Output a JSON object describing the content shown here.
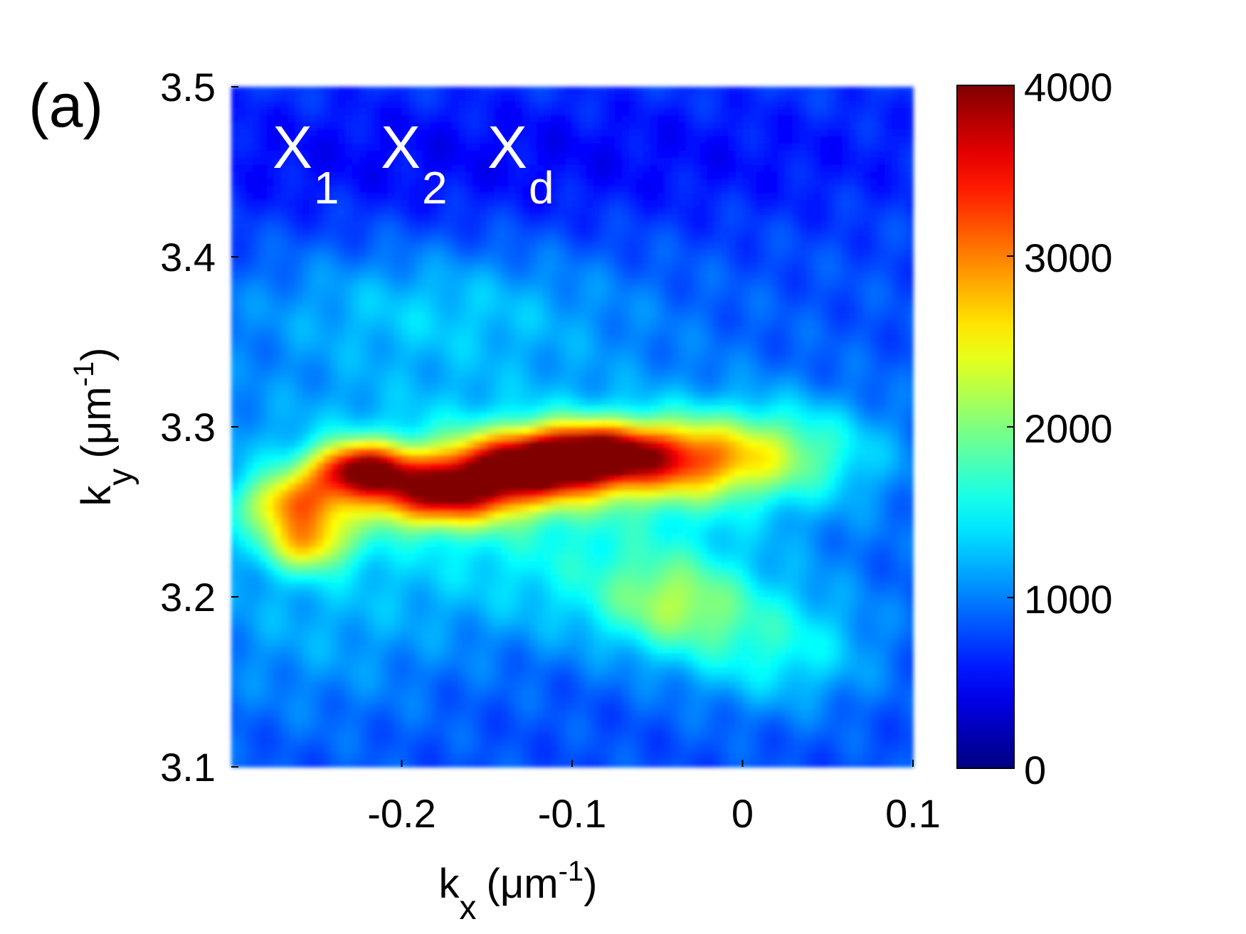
{
  "panel_label": "(a)",
  "annotation": {
    "X1": {
      "base": "X",
      "sub": "1"
    },
    "X2": {
      "base": "X",
      "sub": "2"
    },
    "Xd": {
      "base": "X",
      "sub": "d"
    }
  },
  "colors": {
    "background_level": "#1c73e6",
    "jet_colormap": [
      "#00008f",
      "#0000ff",
      "#0080ff",
      "#00ffff",
      "#80ff80",
      "#ffff00",
      "#ff8000",
      "#ff0000",
      "#800000"
    ]
  },
  "chart_data": {
    "type": "heatmap",
    "title": "",
    "xlabel": {
      "base": "k",
      "sub": "x",
      "unit": "(μm",
      "sup": "-1",
      "close": ")"
    },
    "ylabel": {
      "base": "k",
      "sub": "y",
      "unit": "(μm",
      "sup": "-1",
      "close": ")"
    },
    "xlim": [
      -0.3,
      0.1
    ],
    "ylim": [
      3.1,
      3.5
    ],
    "x_ticks": [
      -0.2,
      -0.1,
      0,
      0.1
    ],
    "x_tick_labels": [
      "-0.2",
      "-0.1",
      "0",
      "0.1"
    ],
    "y_ticks": [
      3.1,
      3.2,
      3.3,
      3.4,
      3.5
    ],
    "y_tick_labels": [
      "3.1",
      "3.2",
      "3.3",
      "3.4",
      "3.5"
    ],
    "colorbar": {
      "colormap": "jet",
      "range": [
        0,
        4000
      ],
      "ticks": [
        0,
        1000,
        2000,
        3000,
        4000
      ],
      "tick_labels": [
        "0",
        "1000",
        "2000",
        "3000",
        "4000"
      ]
    },
    "background_intensity": 800,
    "features": [
      {
        "x": -0.265,
        "y": 3.255,
        "sx": 0.02,
        "sy": 0.012,
        "intensity": 1500
      },
      {
        "x": -0.225,
        "y": 3.275,
        "sx": 0.02,
        "sy": 0.011,
        "intensity": 2500
      },
      {
        "x": -0.255,
        "y": 3.232,
        "sx": 0.018,
        "sy": 0.012,
        "intensity": 1400
      },
      {
        "x": -0.18,
        "y": 3.26,
        "sx": 0.03,
        "sy": 0.013,
        "intensity": 2100
      },
      {
        "x": -0.13,
        "y": 3.275,
        "sx": 0.035,
        "sy": 0.014,
        "intensity": 2500
      },
      {
        "x": -0.09,
        "y": 3.285,
        "sx": 0.03,
        "sy": 0.012,
        "intensity": 2100
      },
      {
        "x": -0.04,
        "y": 3.28,
        "sx": 0.035,
        "sy": 0.016,
        "intensity": 1500
      },
      {
        "x": 0.02,
        "y": 3.285,
        "sx": 0.04,
        "sy": 0.02,
        "intensity": 900
      },
      {
        "x": -0.15,
        "y": 3.27,
        "sx": 0.13,
        "sy": 0.045,
        "intensity": 700
      },
      {
        "x": -0.18,
        "y": 3.37,
        "sx": 0.08,
        "sy": 0.025,
        "intensity": 450
      },
      {
        "x": -0.04,
        "y": 3.195,
        "sx": 0.03,
        "sy": 0.02,
        "intensity": 850
      },
      {
        "x": 0.02,
        "y": 3.17,
        "sx": 0.04,
        "sy": 0.025,
        "intensity": 700
      },
      {
        "x": -0.08,
        "y": 3.21,
        "sx": 0.06,
        "sy": 0.03,
        "intensity": 400
      },
      {
        "x": -0.25,
        "y": 3.18,
        "sx": 0.06,
        "sy": 0.04,
        "intensity": 300
      },
      {
        "x": -0.15,
        "y": 3.46,
        "sx": 0.25,
        "sy": 0.03,
        "intensity": -300
      }
    ]
  }
}
